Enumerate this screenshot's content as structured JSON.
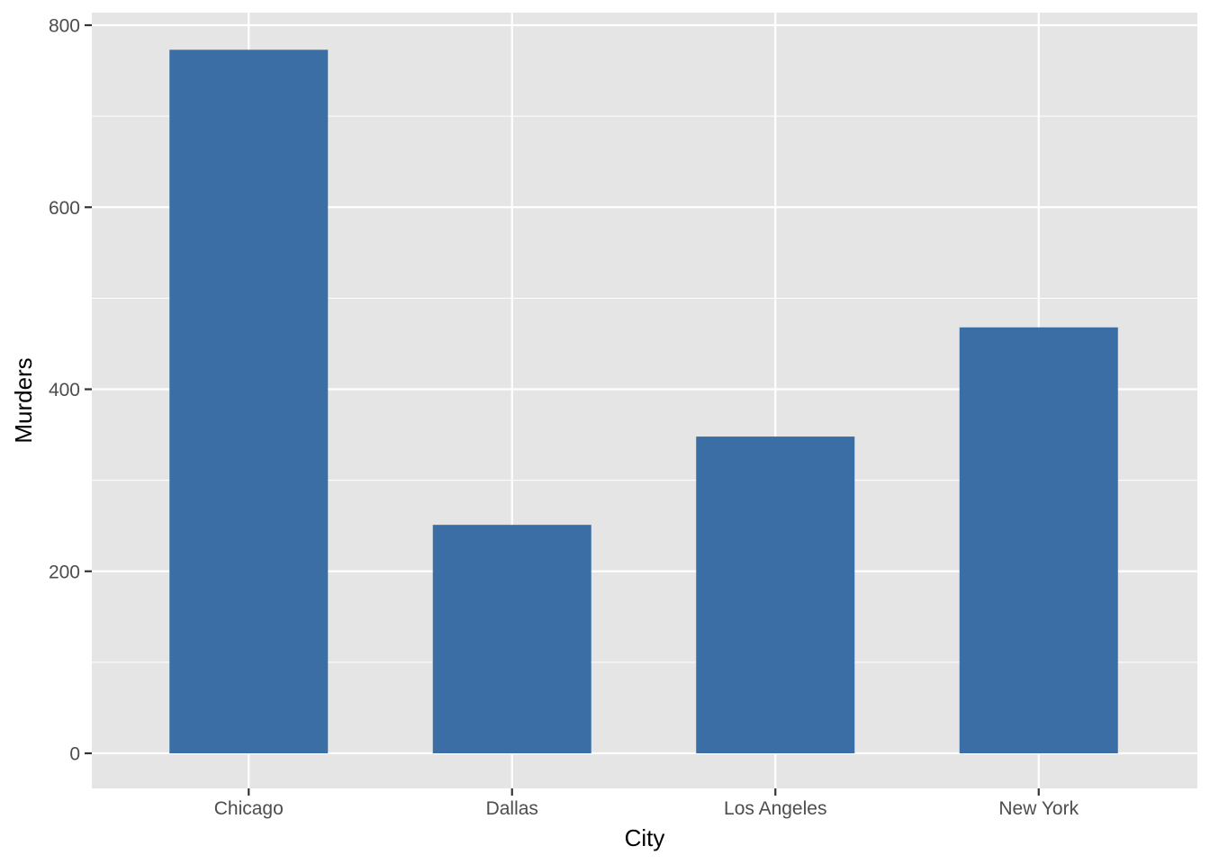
{
  "chart_data": {
    "type": "bar",
    "categories": [
      "Chicago",
      "Dallas",
      "Los Angeles",
      "New York"
    ],
    "values": [
      773,
      251,
      348,
      468
    ],
    "title": "",
    "xlabel": "City",
    "ylabel": "Murders",
    "ylim": [
      0,
      800
    ],
    "yticks": [
      0,
      200,
      400,
      600,
      800
    ],
    "y_minor_ticks": [
      100,
      300,
      500,
      700
    ],
    "grid": true,
    "legend": "none",
    "colors": {
      "bar": "#3A6EA5",
      "panel": "#E5E5E5",
      "grid": "#FFFFFF"
    }
  }
}
